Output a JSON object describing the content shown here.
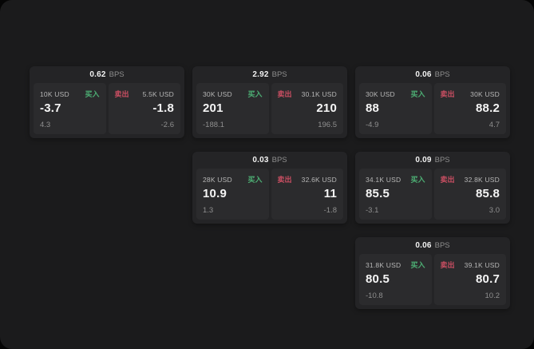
{
  "labels": {
    "bps": "BPS",
    "buy": "买入",
    "sell": "卖出"
  },
  "colors": {
    "buy_green": "#4daf74",
    "sell_red": "#cc4f63",
    "surface_bg": "#1b1b1c",
    "card_bg": "#242426",
    "panel_bg": "#2b2b2d"
  },
  "cards": [
    {
      "row": 0,
      "col": 0,
      "spread": "0.62",
      "buy": {
        "size": "10K USD",
        "price": "-3.7",
        "delta": "4.3"
      },
      "sell": {
        "size": "5.5K USD",
        "price": "-1.8",
        "delta": "-2.6"
      }
    },
    {
      "row": 0,
      "col": 1,
      "spread": "2.92",
      "buy": {
        "size": "30K USD",
        "price": "201",
        "delta": "-188.1"
      },
      "sell": {
        "size": "30.1K USD",
        "price": "210",
        "delta": "196.5"
      }
    },
    {
      "row": 0,
      "col": 2,
      "spread": "0.06",
      "buy": {
        "size": "30K USD",
        "price": "88",
        "delta": "-4.9"
      },
      "sell": {
        "size": "30K USD",
        "price": "88.2",
        "delta": "4.7"
      }
    },
    {
      "row": 1,
      "col": 1,
      "spread": "0.03",
      "buy": {
        "size": "28K USD",
        "price": "10.9",
        "delta": "1.3"
      },
      "sell": {
        "size": "32.6K USD",
        "price": "11",
        "delta": "-1.8"
      }
    },
    {
      "row": 1,
      "col": 2,
      "spread": "0.09",
      "buy": {
        "size": "34.1K USD",
        "price": "85.5",
        "delta": "-3.1"
      },
      "sell": {
        "size": "32.8K USD",
        "price": "85.8",
        "delta": "3.0"
      }
    },
    {
      "row": 2,
      "col": 2,
      "spread": "0.06",
      "buy": {
        "size": "31.8K USD",
        "price": "80.5",
        "delta": "-10.8"
      },
      "sell": {
        "size": "39.1K USD",
        "price": "80.7",
        "delta": "10.2"
      }
    }
  ]
}
